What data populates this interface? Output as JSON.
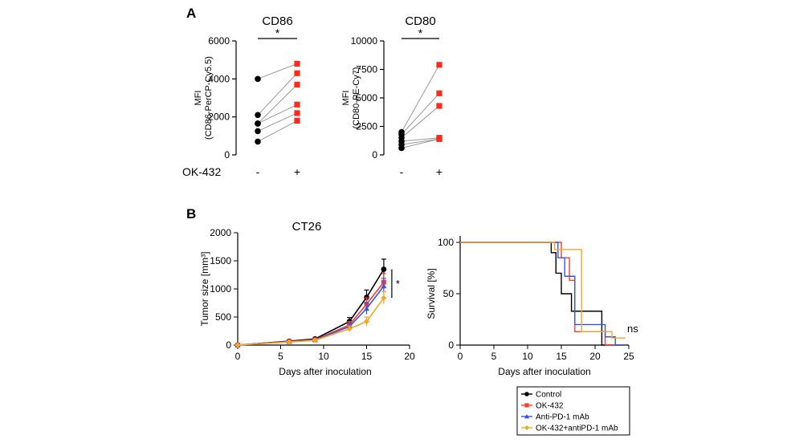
{
  "panel_labels": {
    "a": "A",
    "b": "B"
  },
  "significance": {
    "cd86": "*",
    "cd80": "*",
    "tumor": "*",
    "survival": "ns"
  },
  "colors": {
    "before": "#000000",
    "after": "#ff2a1a",
    "line": "#999999",
    "control": "#000000",
    "ok432": "#ff3b2f",
    "antipd1": "#3355ee",
    "combo": "#f5a623"
  },
  "chart_data": [
    {
      "id": "cd86",
      "type": "scatter",
      "title": "CD86",
      "ylabel": [
        "MFI",
        "(CD86-PerCP-Cy5.5)"
      ],
      "xlabel": "OK-432",
      "categories": [
        "-",
        "+"
      ],
      "ylim": [
        0,
        6000
      ],
      "yticks": [
        "0",
        "2000",
        "4000",
        "6000"
      ],
      "pairs": [
        [
          4000,
          4800
        ],
        [
          2100,
          4300
        ],
        [
          1650,
          3700
        ],
        [
          1650,
          2650
        ],
        [
          1250,
          2200
        ],
        [
          700,
          1800
        ]
      ]
    },
    {
      "id": "cd80",
      "type": "scatter",
      "title": "CD80",
      "ylabel": [
        "MFI",
        "(CD80-PE-Cy7)"
      ],
      "categories": [
        "-",
        "+"
      ],
      "ylim": [
        0,
        10000
      ],
      "yticks": [
        "0",
        "2500",
        "5000",
        "7500",
        "10000"
      ],
      "pairs": [
        [
          2000,
          7900
        ],
        [
          1800,
          5400
        ],
        [
          1500,
          4300
        ],
        [
          1200,
          1500
        ],
        [
          900,
          1400
        ],
        [
          600,
          1400
        ]
      ]
    },
    {
      "id": "tumor",
      "type": "line",
      "title": "CT26",
      "ylabel": "Tumor size [mm³]",
      "xlabel": "Days after inoculation",
      "xlim": [
        0,
        20
      ],
      "ylim": [
        0,
        2000
      ],
      "xticks": [
        "0",
        "5",
        "10",
        "15",
        "20"
      ],
      "yticks": [
        "0",
        "500",
        "1000",
        "1500",
        "2000"
      ],
      "x": [
        0,
        6,
        9,
        13,
        15,
        17
      ],
      "series": [
        {
          "name": "Control",
          "values": [
            0,
            70,
            110,
            420,
            850,
            1350
          ],
          "err": [
            0,
            15,
            20,
            70,
            130,
            180
          ]
        },
        {
          "name": "OK-432",
          "values": [
            0,
            65,
            95,
            360,
            730,
            1120
          ],
          "err": [
            0,
            15,
            20,
            60,
            110,
            150
          ]
        },
        {
          "name": "Anti-PD-1 mAb",
          "values": [
            0,
            60,
            90,
            330,
            650,
            1050
          ],
          "err": [
            0,
            15,
            20,
            55,
            100,
            140
          ]
        },
        {
          "name": "OK-432+antiPD-1 mAb",
          "values": [
            0,
            55,
            85,
            290,
            420,
            840
          ],
          "err": [
            0,
            10,
            20,
            50,
            80,
            110
          ]
        }
      ]
    },
    {
      "id": "survival",
      "type": "line",
      "ylabel": "Survival [%]",
      "xlabel": "Days after inoculation",
      "xlim": [
        0,
        25
      ],
      "ylim": [
        0,
        100
      ],
      "xticks": [
        "0",
        "5",
        "10",
        "15",
        "20",
        "25"
      ],
      "yticks": [
        "0",
        "50",
        "100"
      ],
      "series": [
        {
          "name": "Control",
          "steps": [
            [
              0,
              100
            ],
            [
              13.5,
              100
            ],
            [
              13.5,
              90
            ],
            [
              14.2,
              90
            ],
            [
              14.2,
              70
            ],
            [
              15,
              70
            ],
            [
              15,
              50
            ],
            [
              16.5,
              50
            ],
            [
              16.5,
              33
            ],
            [
              21,
              33
            ],
            [
              21,
              0
            ],
            [
              24,
              0
            ]
          ]
        },
        {
          "name": "OK-432",
          "steps": [
            [
              0,
              100
            ],
            [
              15,
              100
            ],
            [
              15,
              85
            ],
            [
              16.2,
              85
            ],
            [
              16.2,
              63
            ],
            [
              17,
              63
            ],
            [
              17,
              13
            ],
            [
              21.5,
              13
            ],
            [
              21.5,
              0
            ],
            [
              24,
              0
            ]
          ]
        },
        {
          "name": "Anti-PD-1 mAb",
          "steps": [
            [
              0,
              100
            ],
            [
              14.5,
              100
            ],
            [
              14.5,
              85
            ],
            [
              15.5,
              85
            ],
            [
              15.5,
              67
            ],
            [
              17,
              67
            ],
            [
              17,
              20
            ],
            [
              21.5,
              20
            ],
            [
              21.5,
              8
            ],
            [
              23,
              8
            ],
            [
              23,
              0
            ],
            [
              24,
              0
            ]
          ]
        },
        {
          "name": "OK-432+antiPD-1 mAb",
          "steps": [
            [
              0,
              100
            ],
            [
              14,
              100
            ],
            [
              14,
              93
            ],
            [
              18,
              93
            ],
            [
              18,
              13
            ],
            [
              22.5,
              13
            ],
            [
              22.5,
              7
            ],
            [
              24.5,
              7
            ]
          ]
        }
      ]
    }
  ],
  "legend": {
    "placement": "bottom-right",
    "items": [
      {
        "label": "Control",
        "color": "#000000",
        "marker": "circle"
      },
      {
        "label": "OK-432",
        "color": "#ff3b2f",
        "marker": "square"
      },
      {
        "label": "Anti-PD-1 mAb",
        "color": "#3355ee",
        "marker": "triangle"
      },
      {
        "label": "OK-432+antiPD-1 mAb",
        "color": "#f5a623",
        "marker": "diamond"
      }
    ]
  }
}
